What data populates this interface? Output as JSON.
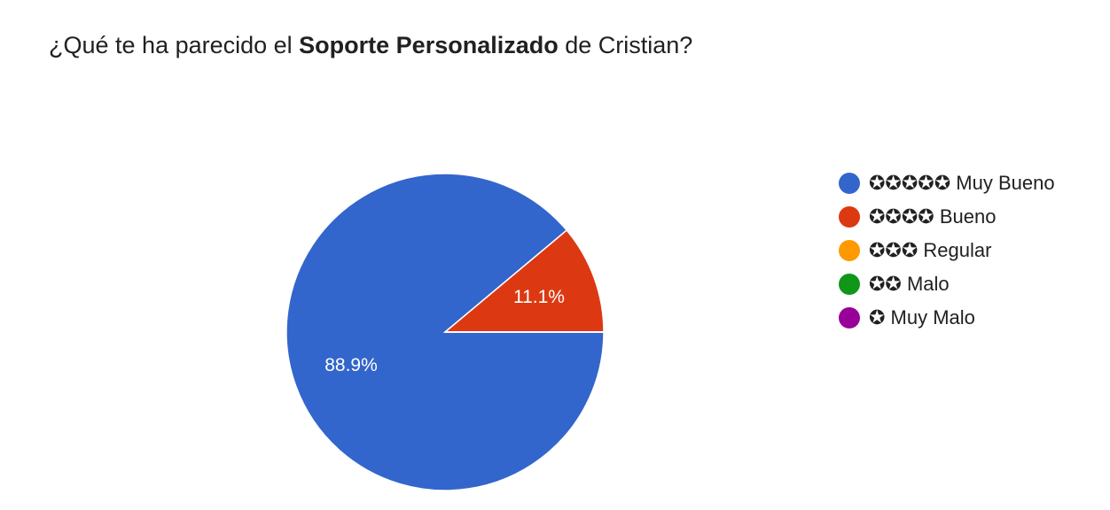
{
  "chart_data": {
    "type": "pie",
    "title": [
      "¿Qué te ha parecido el ",
      "Soporte Personalizado",
      " de Cristian?"
    ],
    "categories": [
      "✪✪✪✪✪ Muy Bueno",
      "✪✪✪✪ Bueno",
      "✪✪✪ Regular",
      "✪✪ Malo",
      "✪ Muy Malo"
    ],
    "values": [
      88.9,
      11.1,
      0,
      0,
      0
    ],
    "value_labels": [
      "88.9%",
      "11.1%",
      null,
      null,
      null
    ],
    "colors": [
      "#3366cc",
      "#dc3912",
      "#ff9900",
      "#109618",
      "#990099"
    ],
    "legend": "right"
  }
}
